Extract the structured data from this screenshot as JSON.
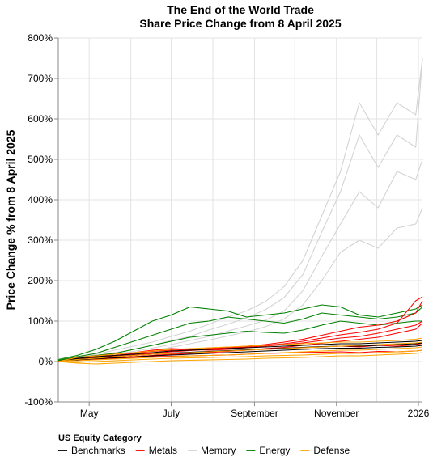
{
  "chart_data": {
    "type": "line",
    "title": [
      "The End of the World Trade",
      "Share Price Change from 8 April 2025"
    ],
    "xlabel": "",
    "ylabel": "Price Change % from 8 April 2025",
    "x_range": [
      "2025-04-08",
      "2026-01-04"
    ],
    "x_ticks": [
      {
        "date": "2025-05-01",
        "label": "May"
      },
      {
        "date": "2025-07-01",
        "label": "July"
      },
      {
        "date": "2025-09-01",
        "label": "September"
      },
      {
        "date": "2025-11-01",
        "label": "November"
      },
      {
        "date": "2026-01-01",
        "label": "2026"
      }
    ],
    "ylim": [
      -100,
      800
    ],
    "y_ticks": [
      -100,
      0,
      100,
      200,
      300,
      400,
      500,
      600,
      700,
      800
    ],
    "y_tick_format": "{v}%",
    "grid": true,
    "legend": {
      "title": "US Equity Category",
      "placement": "bottom-left",
      "entries": [
        {
          "name": "Benchmarks",
          "color": "#000000"
        },
        {
          "name": "Metals",
          "color": "#ff0000"
        },
        {
          "name": "Memory",
          "color": "#d3d3d3"
        },
        {
          "name": "Energy",
          "color": "#008000"
        },
        {
          "name": "Defense",
          "color": "#ffa500"
        }
      ]
    },
    "dates": [
      "2025-04-08",
      "2025-04-22",
      "2025-05-06",
      "2025-05-20",
      "2025-06-03",
      "2025-06-17",
      "2025-07-01",
      "2025-07-15",
      "2025-07-29",
      "2025-08-12",
      "2025-08-26",
      "2025-09-09",
      "2025-09-23",
      "2025-10-07",
      "2025-10-21",
      "2025-11-04",
      "2025-11-18",
      "2025-12-02",
      "2025-12-16",
      "2025-12-30",
      "2026-01-04"
    ],
    "series": [
      {
        "category": "Memory",
        "color": "#d3d3d3",
        "values": [
          0,
          10,
          18,
          28,
          38,
          48,
          62,
          75,
          92,
          110,
          125,
          148,
          185,
          250,
          360,
          470,
          640,
          560,
          640,
          610,
          750
        ]
      },
      {
        "category": "Memory",
        "color": "#d3d3d3",
        "values": [
          0,
          8,
          15,
          22,
          30,
          40,
          52,
          62,
          78,
          92,
          108,
          128,
          158,
          215,
          320,
          420,
          560,
          480,
          560,
          530,
          750
        ]
      },
      {
        "category": "Memory",
        "color": "#d3d3d3",
        "values": [
          0,
          6,
          12,
          18,
          25,
          33,
          42,
          52,
          62,
          75,
          88,
          102,
          125,
          175,
          260,
          340,
          420,
          380,
          470,
          450,
          500
        ]
      },
      {
        "category": "Memory",
        "color": "#d3d3d3",
        "values": [
          0,
          5,
          10,
          15,
          20,
          27,
          35,
          44,
          53,
          63,
          73,
          86,
          105,
          140,
          200,
          270,
          300,
          280,
          330,
          340,
          380
        ]
      },
      {
        "category": "Energy",
        "color": "#008000",
        "values": [
          5,
          15,
          30,
          50,
          75,
          100,
          115,
          135,
          130,
          125,
          110,
          115,
          120,
          130,
          140,
          135,
          115,
          110,
          120,
          130,
          140
        ]
      },
      {
        "category": "Energy",
        "color": "#008000",
        "values": [
          3,
          12,
          20,
          35,
          50,
          65,
          80,
          95,
          100,
          110,
          105,
          100,
          95,
          105,
          120,
          115,
          110,
          105,
          110,
          120,
          135
        ]
      },
      {
        "category": "Energy",
        "color": "#008000",
        "values": [
          2,
          10,
          15,
          20,
          30,
          40,
          50,
          60,
          65,
          70,
          75,
          72,
          70,
          78,
          90,
          100,
          95,
          90,
          95,
          100,
          100
        ]
      },
      {
        "category": "Metals",
        "color": "#ff0000",
        "values": [
          0,
          8,
          12,
          15,
          20,
          25,
          28,
          30,
          32,
          35,
          38,
          42,
          48,
          55,
          65,
          75,
          85,
          90,
          100,
          120,
          150
        ]
      },
      {
        "category": "Metals",
        "color": "#ff0000",
        "values": [
          0,
          6,
          10,
          13,
          16,
          20,
          24,
          27,
          30,
          33,
          36,
          40,
          44,
          50,
          58,
          66,
          72,
          80,
          95,
          150,
          160
        ]
      },
      {
        "category": "Metals",
        "color": "#ff0000",
        "values": [
          0,
          10,
          14,
          18,
          22,
          28,
          32,
          30,
          28,
          30,
          34,
          38,
          42,
          46,
          52,
          58,
          62,
          70,
          80,
          90,
          100
        ]
      },
      {
        "category": "Metals",
        "color": "#ff0000",
        "values": [
          0,
          5,
          8,
          10,
          12,
          15,
          18,
          20,
          22,
          25,
          28,
          32,
          35,
          40,
          45,
          50,
          55,
          60,
          70,
          80,
          95
        ]
      },
      {
        "category": "Metals",
        "color": "#ff0000",
        "values": [
          0,
          7,
          9,
          12,
          15,
          18,
          20,
          22,
          24,
          26,
          28,
          30,
          32,
          34,
          36,
          38,
          36,
          40,
          38,
          42,
          45
        ]
      },
      {
        "category": "Metals",
        "color": "#ff0000",
        "values": [
          0,
          4,
          6,
          8,
          10,
          12,
          13,
          14,
          15,
          16,
          18,
          20,
          21,
          22,
          23,
          24,
          22,
          25,
          24,
          26,
          28
        ]
      },
      {
        "category": "Benchmarks",
        "color": "#000000",
        "values": [
          0,
          8,
          12,
          15,
          18,
          22,
          26,
          28,
          30,
          32,
          34,
          36,
          38,
          40,
          42,
          44,
          44,
          46,
          48,
          50,
          52
        ]
      },
      {
        "category": "Benchmarks",
        "color": "#000000",
        "values": [
          0,
          6,
          9,
          12,
          15,
          18,
          21,
          23,
          25,
          27,
          29,
          31,
          33,
          35,
          37,
          38,
          38,
          40,
          42,
          44,
          46
        ]
      },
      {
        "category": "Benchmarks",
        "color": "#000000",
        "values": [
          0,
          4,
          7,
          9,
          11,
          14,
          16,
          18,
          20,
          22,
          24,
          26,
          28,
          30,
          32,
          33,
          33,
          35,
          36,
          38,
          40
        ]
      },
      {
        "category": "Defense",
        "color": "#ffa500",
        "values": [
          0,
          10,
          14,
          18,
          22,
          26,
          30,
          32,
          34,
          36,
          38,
          40,
          42,
          44,
          46,
          48,
          48,
          50,
          52,
          55,
          58
        ]
      },
      {
        "category": "Defense",
        "color": "#ffa500",
        "values": [
          0,
          5,
          8,
          12,
          15,
          18,
          20,
          22,
          24,
          26,
          28,
          30,
          32,
          34,
          36,
          38,
          40,
          42,
          44,
          46,
          48
        ]
      },
      {
        "category": "Defense",
        "color": "#ffa500",
        "values": [
          0,
          2,
          4,
          6,
          8,
          10,
          12,
          14,
          15,
          16,
          18,
          20,
          22,
          24,
          26,
          28,
          28,
          30,
          32,
          34,
          36
        ]
      },
      {
        "category": "Defense",
        "color": "#ffa500",
        "values": [
          0,
          -2,
          0,
          2,
          4,
          6,
          8,
          9,
          10,
          11,
          12,
          14,
          15,
          16,
          18,
          20,
          20,
          22,
          24,
          26,
          28
        ]
      },
      {
        "category": "Defense",
        "color": "#ffa500",
        "values": [
          0,
          -4,
          -6,
          -4,
          -2,
          0,
          2,
          3,
          4,
          5,
          6,
          8,
          9,
          10,
          12,
          14,
          14,
          16,
          18,
          20,
          22
        ]
      }
    ]
  }
}
